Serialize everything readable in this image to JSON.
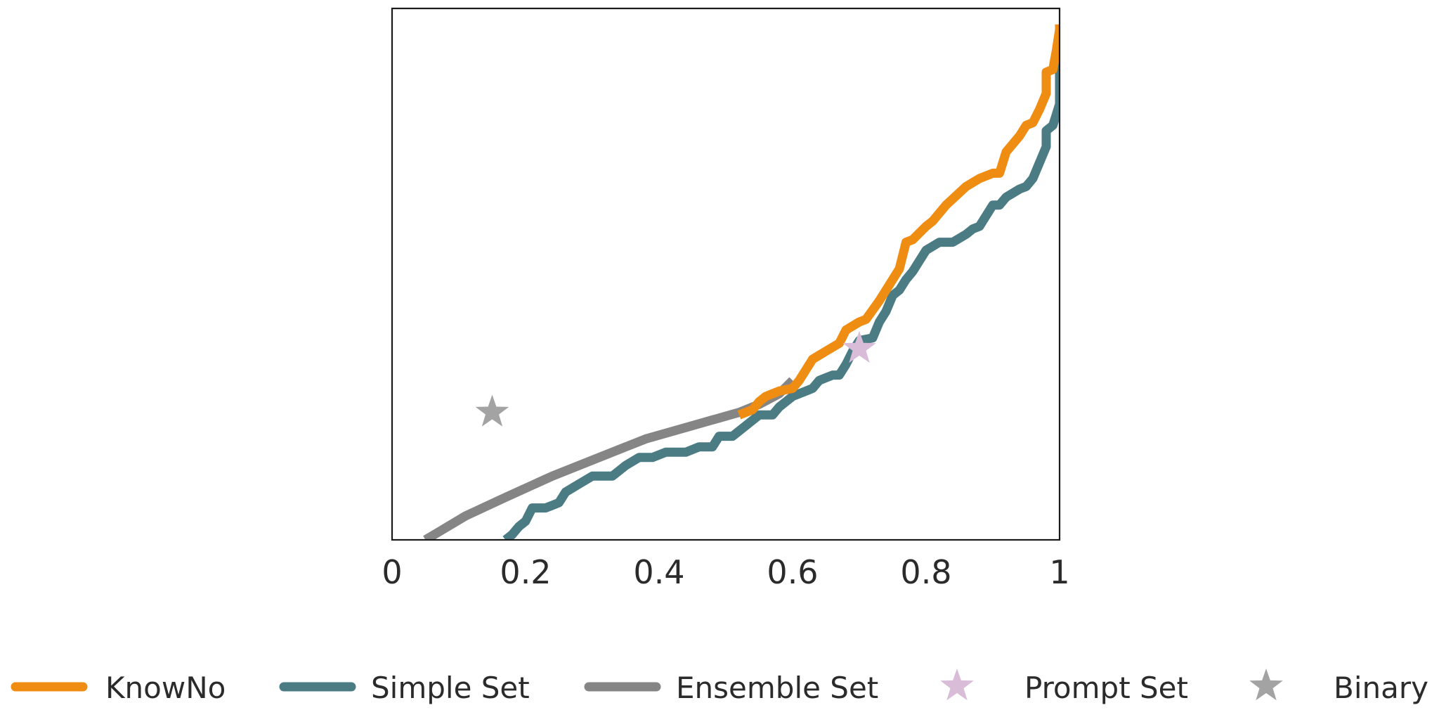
{
  "chart_data": {
    "type": "line",
    "title": "",
    "xlabel": "",
    "ylabel": "",
    "xlim": [
      0,
      1
    ],
    "ylim": [
      0,
      1
    ],
    "grid": false,
    "legend_position": "bottom",
    "x_ticks": [
      {
        "value": 0,
        "label": "0"
      },
      {
        "value": 0.2,
        "label": "0.2"
      },
      {
        "value": 0.4,
        "label": "0.4"
      },
      {
        "value": 0.6,
        "label": "0.6"
      },
      {
        "value": 0.8,
        "label": "0.8"
      },
      {
        "value": 1,
        "label": "1"
      }
    ],
    "series": [
      {
        "name": "KnowNo",
        "color": "#ef8c12",
        "marker": "line",
        "points": [
          [
            0.52,
            0.235
          ],
          [
            0.54,
            0.245
          ],
          [
            0.55,
            0.26
          ],
          [
            0.56,
            0.27
          ],
          [
            0.58,
            0.28
          ],
          [
            0.6,
            0.285
          ],
          [
            0.61,
            0.3
          ],
          [
            0.63,
            0.34
          ],
          [
            0.65,
            0.355
          ],
          [
            0.67,
            0.37
          ],
          [
            0.68,
            0.395
          ],
          [
            0.7,
            0.41
          ],
          [
            0.71,
            0.415
          ],
          [
            0.73,
            0.45
          ],
          [
            0.75,
            0.49
          ],
          [
            0.76,
            0.51
          ],
          [
            0.77,
            0.56
          ],
          [
            0.78,
            0.565
          ],
          [
            0.8,
            0.59
          ],
          [
            0.81,
            0.6
          ],
          [
            0.83,
            0.63
          ],
          [
            0.86,
            0.665
          ],
          [
            0.88,
            0.68
          ],
          [
            0.9,
            0.69
          ],
          [
            0.91,
            0.69
          ],
          [
            0.92,
            0.73
          ],
          [
            0.94,
            0.76
          ],
          [
            0.95,
            0.78
          ],
          [
            0.96,
            0.785
          ],
          [
            0.97,
            0.81
          ],
          [
            0.98,
            0.84
          ],
          [
            0.98,
            0.88
          ],
          [
            0.99,
            0.885
          ],
          [
            0.995,
            0.92
          ],
          [
            1.0,
            0.96
          ],
          [
            1.0,
            0.97
          ]
        ]
      },
      {
        "name": "Simple Set",
        "color": "#4b7b83",
        "marker": "line",
        "points": [
          [
            0.17,
            0.0
          ],
          [
            0.18,
            0.01
          ],
          [
            0.19,
            0.025
          ],
          [
            0.2,
            0.035
          ],
          [
            0.21,
            0.06
          ],
          [
            0.23,
            0.06
          ],
          [
            0.24,
            0.065
          ],
          [
            0.25,
            0.07
          ],
          [
            0.26,
            0.09
          ],
          [
            0.28,
            0.105
          ],
          [
            0.3,
            0.12
          ],
          [
            0.33,
            0.12
          ],
          [
            0.35,
            0.14
          ],
          [
            0.37,
            0.155
          ],
          [
            0.39,
            0.155
          ],
          [
            0.41,
            0.165
          ],
          [
            0.44,
            0.165
          ],
          [
            0.46,
            0.175
          ],
          [
            0.48,
            0.175
          ],
          [
            0.49,
            0.195
          ],
          [
            0.51,
            0.195
          ],
          [
            0.53,
            0.215
          ],
          [
            0.55,
            0.235
          ],
          [
            0.57,
            0.235
          ],
          [
            0.58,
            0.25
          ],
          [
            0.59,
            0.26
          ],
          [
            0.6,
            0.27
          ],
          [
            0.62,
            0.28
          ],
          [
            0.63,
            0.285
          ],
          [
            0.64,
            0.3
          ],
          [
            0.66,
            0.31
          ],
          [
            0.67,
            0.31
          ],
          [
            0.68,
            0.33
          ],
          [
            0.69,
            0.355
          ],
          [
            0.7,
            0.375
          ],
          [
            0.72,
            0.38
          ],
          [
            0.73,
            0.41
          ],
          [
            0.74,
            0.43
          ],
          [
            0.75,
            0.46
          ],
          [
            0.76,
            0.47
          ],
          [
            0.77,
            0.49
          ],
          [
            0.78,
            0.505
          ],
          [
            0.79,
            0.525
          ],
          [
            0.8,
            0.545
          ],
          [
            0.82,
            0.56
          ],
          [
            0.84,
            0.56
          ],
          [
            0.86,
            0.575
          ],
          [
            0.87,
            0.585
          ],
          [
            0.88,
            0.59
          ],
          [
            0.9,
            0.63
          ],
          [
            0.91,
            0.63
          ],
          [
            0.92,
            0.645
          ],
          [
            0.94,
            0.66
          ],
          [
            0.95,
            0.665
          ],
          [
            0.96,
            0.68
          ],
          [
            0.98,
            0.74
          ],
          [
            0.98,
            0.77
          ],
          [
            0.99,
            0.78
          ],
          [
            0.995,
            0.8
          ],
          [
            1.0,
            0.82
          ],
          [
            1.0,
            0.93
          ]
        ]
      },
      {
        "name": "Ensemble Set",
        "color": "#858585",
        "marker": "line",
        "points": [
          [
            0.05,
            0.0
          ],
          [
            0.07,
            0.015
          ],
          [
            0.11,
            0.045
          ],
          [
            0.17,
            0.08
          ],
          [
            0.24,
            0.12
          ],
          [
            0.31,
            0.155
          ],
          [
            0.38,
            0.19
          ],
          [
            0.45,
            0.215
          ],
          [
            0.52,
            0.24
          ],
          [
            0.55,
            0.255
          ],
          [
            0.58,
            0.275
          ],
          [
            0.6,
            0.3
          ]
        ]
      },
      {
        "name": "Prompt Set",
        "color": "#d8bcd8",
        "marker": "star",
        "points": [
          [
            0.7,
            0.36
          ]
        ]
      },
      {
        "name": "Binary",
        "color": "#a3a3a3",
        "marker": "star",
        "points": [
          [
            0.15,
            0.24
          ]
        ]
      }
    ]
  }
}
